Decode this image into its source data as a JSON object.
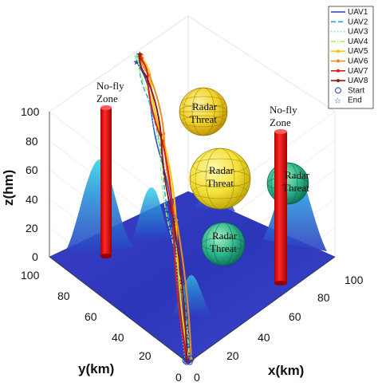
{
  "chart_data": {
    "type": "line",
    "axes": {
      "x": {
        "label": "x(km)",
        "range": [
          0,
          100
        ],
        "ticks": [
          "0",
          "20",
          "40",
          "60",
          "80",
          "100"
        ]
      },
      "y": {
        "label": "y(km)",
        "range": [
          0,
          100
        ],
        "ticks": [
          "0",
          "20",
          "40",
          "60",
          "80",
          "100"
        ]
      },
      "z": {
        "label": "z(hm)",
        "range": [
          0,
          100
        ],
        "ticks": [
          "0",
          "20",
          "40",
          "60",
          "80",
          "100"
        ]
      }
    },
    "legend": {
      "placement": "top-right",
      "entries": [
        {
          "label": "UAV1",
          "color": "#1f3fbf",
          "style": "solid"
        },
        {
          "label": "UAV2",
          "color": "#1fa8c8",
          "style": "dashed"
        },
        {
          "label": "UAV3",
          "color": "#60e0e0",
          "style": "dotted"
        },
        {
          "label": "UAV4",
          "color": "#a6f25c",
          "style": "dashdot"
        },
        {
          "label": "UAV5",
          "color": "#f5c800",
          "style": "solid-star"
        },
        {
          "label": "UAV6",
          "color": "#f08a1c",
          "style": "solid-dot"
        },
        {
          "label": "UAV7",
          "color": "#e21a1a",
          "style": "solid-x"
        },
        {
          "label": "UAV8",
          "color": "#8b1a1a",
          "style": "solid-square"
        },
        {
          "label": "Start",
          "color": "#1f3fbf",
          "style": "circle"
        },
        {
          "label": "End",
          "color": "#1f3fbf",
          "style": "star"
        }
      ]
    },
    "annotations": [
      {
        "text1": "No-fly",
        "text2": "Zone"
      },
      {
        "text1": "No-fly",
        "text2": "Zone"
      },
      {
        "text1": "Radar",
        "text2": "Threat"
      },
      {
        "text1": "Radar",
        "text2": "Threat"
      },
      {
        "text1": "Radar",
        "text2": "Threat"
      },
      {
        "text1": "Radar",
        "text2": "Threat"
      }
    ],
    "obstacles": {
      "no_fly_zones": [
        {
          "x": 80,
          "y": 60,
          "z_top": 100
        },
        {
          "x": 80,
          "y": 10,
          "z_top": 88
        }
      ],
      "radar_threats": [
        {
          "x": 38,
          "y": 45,
          "z": 75,
          "radius": 14,
          "color": "#f2d22a"
        },
        {
          "x": 48,
          "y": 50,
          "z": 45,
          "radius": 16,
          "color": "#f5e23a"
        },
        {
          "x": 55,
          "y": 15,
          "z": 62,
          "radius": 12,
          "color": "#2fb88a"
        },
        {
          "x": 60,
          "y": 45,
          "z": 10,
          "radius": 12,
          "color": "#2fb88a"
        }
      ]
    },
    "series": [
      {
        "name": "UAV1",
        "points": [
          [
            1,
            1,
            0
          ],
          [
            20,
            30,
            40
          ],
          [
            35,
            55,
            70
          ],
          [
            45,
            75,
            95
          ],
          [
            50,
            90,
            105
          ]
        ]
      },
      {
        "name": "UAV2",
        "points": [
          [
            2,
            1,
            0
          ],
          [
            22,
            32,
            40
          ],
          [
            34,
            54,
            68
          ],
          [
            44,
            76,
            96
          ],
          [
            51,
            89,
            105
          ]
        ]
      },
      {
        "name": "UAV3",
        "points": [
          [
            0,
            2,
            0
          ],
          [
            24,
            34,
            42
          ],
          [
            38,
            60,
            75
          ],
          [
            48,
            80,
            98
          ],
          [
            52,
            92,
            106
          ]
        ]
      },
      {
        "name": "UAV4",
        "points": [
          [
            1,
            0,
            0
          ],
          [
            22,
            35,
            44
          ],
          [
            36,
            58,
            72
          ],
          [
            46,
            78,
            97
          ],
          [
            52,
            91,
            106
          ]
        ]
      },
      {
        "name": "UAV5",
        "points": [
          [
            2,
            2,
            0
          ],
          [
            26,
            36,
            48
          ],
          [
            40,
            60,
            80
          ],
          [
            50,
            80,
            100
          ],
          [
            53,
            90,
            106
          ]
        ]
      },
      {
        "name": "UAV6",
        "points": [
          [
            3,
            1,
            0
          ],
          [
            28,
            38,
            50
          ],
          [
            42,
            62,
            82
          ],
          [
            51,
            82,
            101
          ],
          [
            54,
            91,
            106
          ]
        ]
      },
      {
        "name": "UAV7",
        "points": [
          [
            0,
            1,
            0
          ],
          [
            25,
            37,
            46
          ],
          [
            40,
            61,
            79
          ],
          [
            49,
            81,
            99
          ],
          [
            53,
            90,
            105
          ]
        ]
      },
      {
        "name": "UAV8",
        "points": [
          [
            1,
            2,
            0
          ],
          [
            27,
            39,
            49
          ],
          [
            41,
            63,
            81
          ],
          [
            50,
            83,
            100
          ],
          [
            54,
            92,
            106
          ]
        ]
      }
    ]
  }
}
